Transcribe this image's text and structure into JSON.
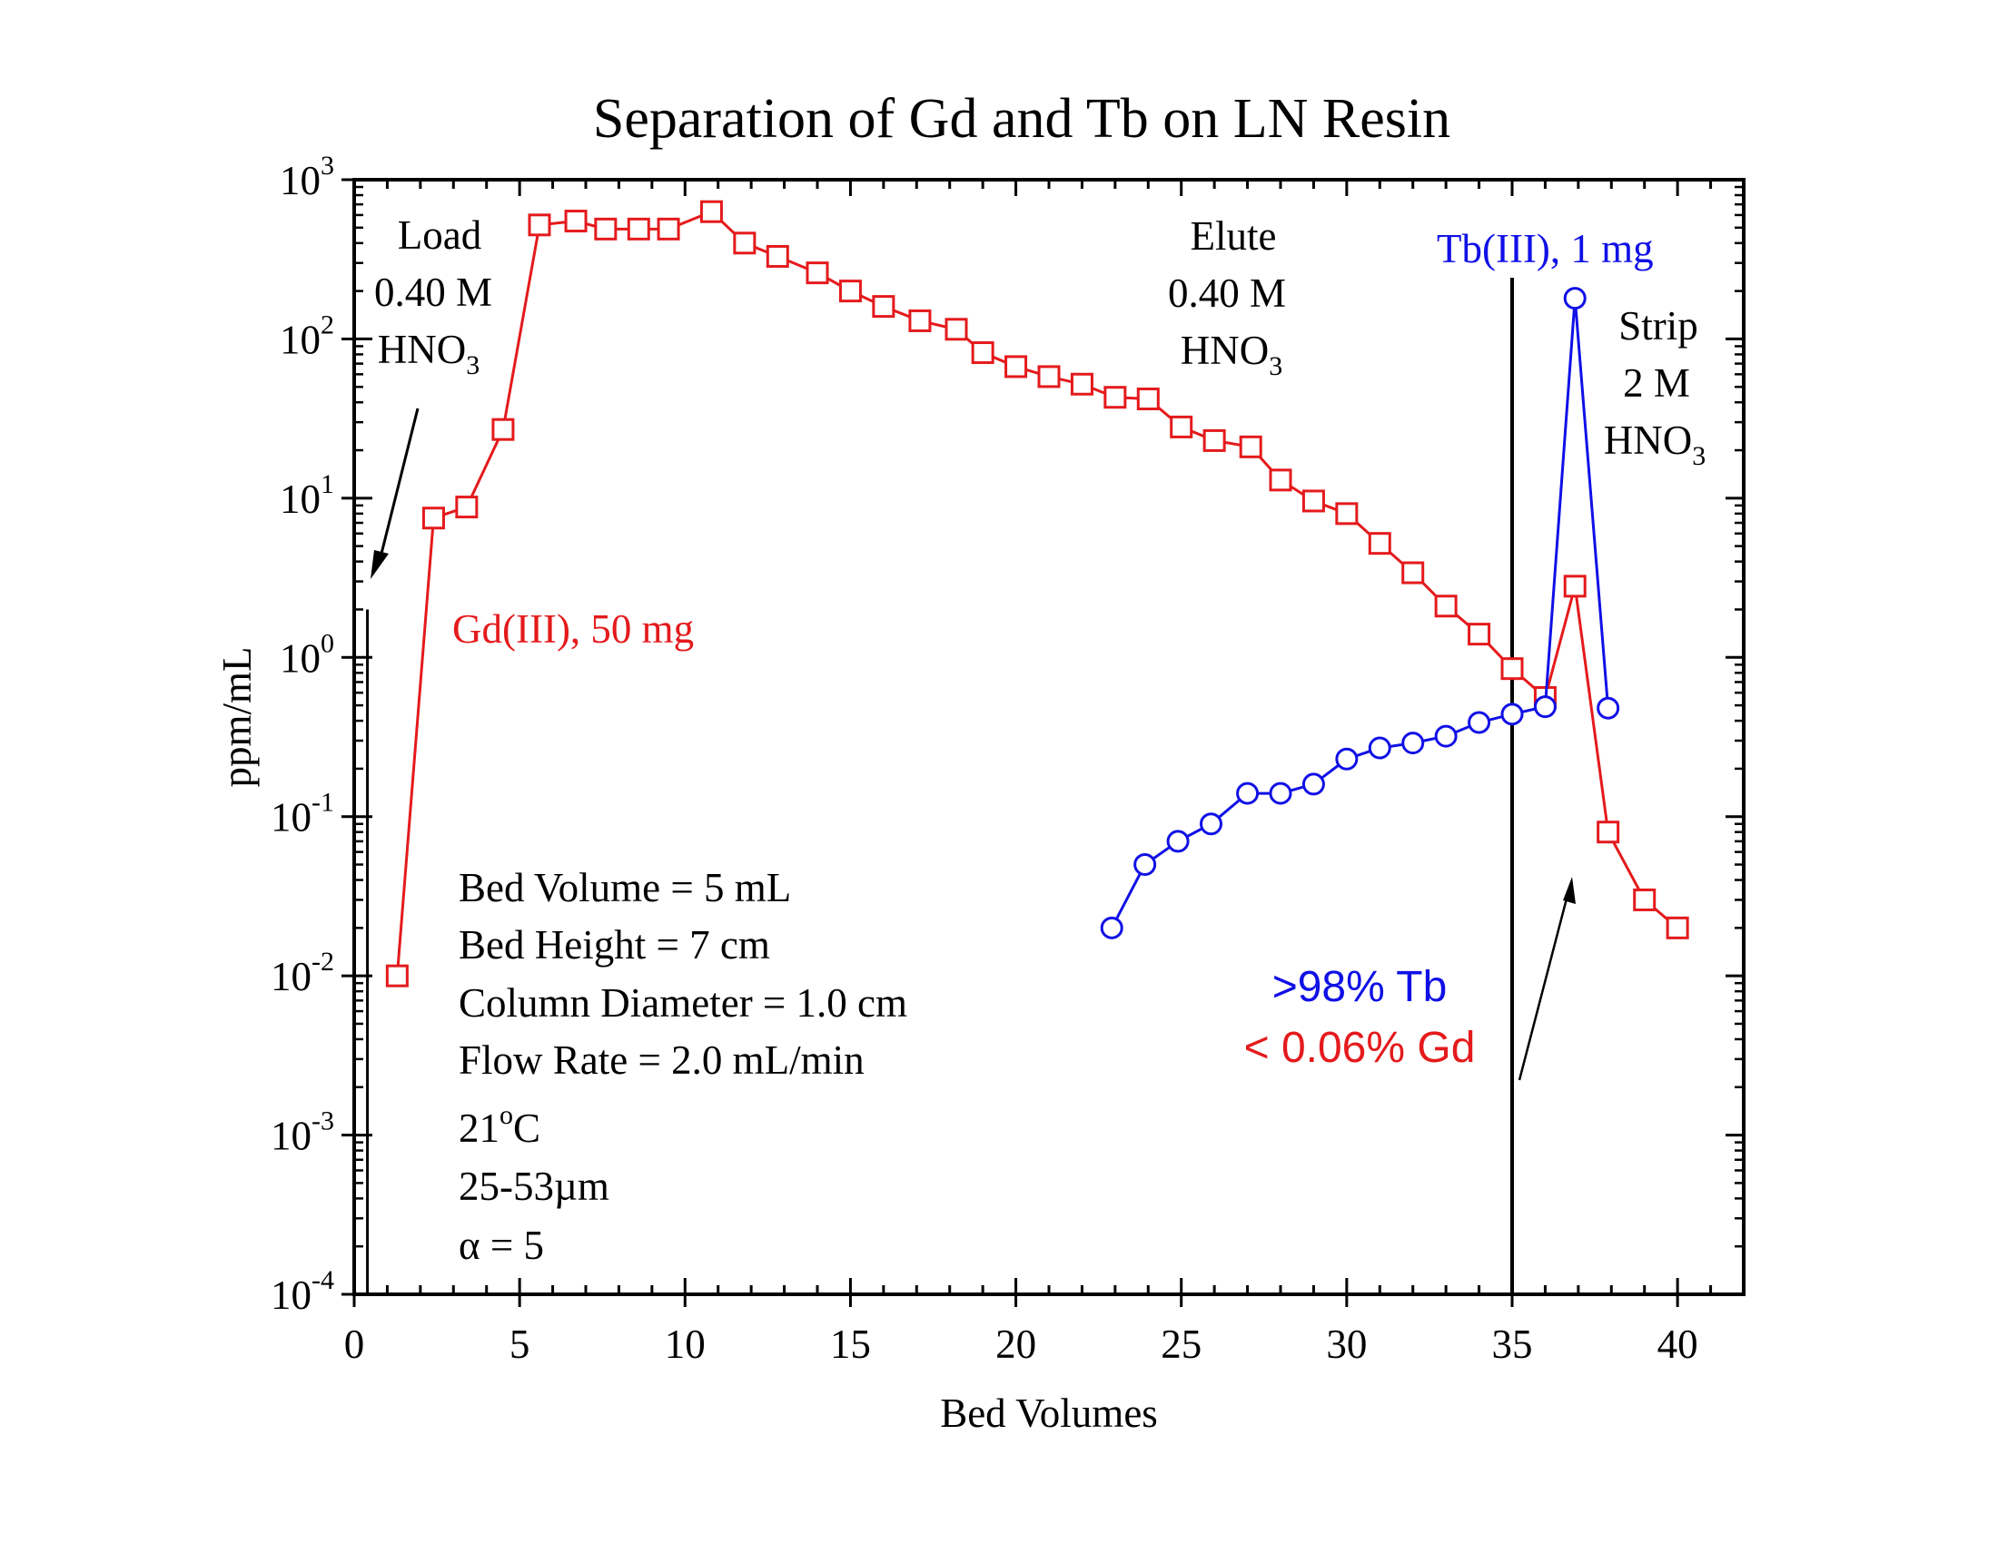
{
  "chart_data": {
    "type": "line",
    "title": "Separation of Gd and Tb on LN Resin",
    "xlabel": "Bed Volumes",
    "ylabel": "ppm/mL",
    "xlim": [
      0,
      42
    ],
    "ylim_log10": [
      -4,
      3
    ],
    "yscale": "log",
    "grid": false,
    "x_ticks": [
      "0",
      "5",
      "10",
      "15",
      "20",
      "25",
      "30",
      "35",
      "40"
    ],
    "y_ticks": [
      {
        "base": "10",
        "exp": "3"
      },
      {
        "base": "10",
        "exp": "2"
      },
      {
        "base": "10",
        "exp": "1"
      },
      {
        "base": "10",
        "exp": "0"
      },
      {
        "base": "10",
        "exp": "-1"
      },
      {
        "base": "10",
        "exp": "-2"
      },
      {
        "base": "10",
        "exp": "-3"
      },
      {
        "base": "10",
        "exp": "-4"
      }
    ],
    "series": [
      {
        "name": "Gd(III), 50 mg",
        "color": "#e41a1c",
        "marker": "square",
        "x": [
          1.3,
          2.4,
          3.4,
          4.5,
          5.6,
          6.7,
          7.6,
          8.6,
          9.5,
          10.8,
          11.8,
          12.8,
          14.0,
          15.0,
          16.0,
          17.1,
          18.2,
          19.0,
          20.0,
          21.0,
          22.0,
          23.0,
          24.0,
          25.0,
          26.0,
          27.1,
          28.0,
          29.0,
          30.0,
          31.0,
          32.0,
          33.0,
          34.0,
          35.0,
          36.0,
          36.9,
          37.9,
          39.0,
          40.0
        ],
        "y": [
          0.01,
          7.5,
          8.8,
          27,
          520,
          550,
          490,
          490,
          490,
          630,
          400,
          330,
          260,
          200,
          160,
          130,
          115,
          82,
          67,
          58,
          52,
          43,
          42,
          28,
          23,
          21,
          13,
          9.6,
          8.0,
          5.2,
          3.4,
          2.1,
          1.4,
          0.85,
          0.56,
          2.8,
          0.08,
          0.03,
          0.02
        ]
      },
      {
        "name": "Tb(III), 1 mg",
        "color": "#1010e6",
        "marker": "circle",
        "x": [
          22.9,
          23.9,
          24.9,
          25.9,
          27.0,
          28.0,
          29.0,
          30.0,
          31.0,
          32.0,
          33.0,
          34.0,
          35.0,
          36.0,
          36.9,
          37.9
        ],
        "y": [
          0.02,
          0.05,
          0.07,
          0.09,
          0.14,
          0.14,
          0.16,
          0.23,
          0.27,
          0.29,
          0.32,
          0.39,
          0.44,
          0.49,
          180,
          0.48
        ]
      }
    ],
    "vertical_lines": [
      0.4,
      35.0
    ],
    "annotations": {
      "load": [
        "Load",
        "0.40 M",
        "HNO",
        "3"
      ],
      "elute": [
        "Elute",
        "0.40 M",
        "HNO",
        "3"
      ],
      "strip": [
        "Strip",
        "2 M",
        "HNO",
        "3"
      ],
      "gd_label": "Gd(III), 50 mg",
      "tb_label": "Tb(III), 1 mg",
      "tb_percent": ">98% Tb",
      "gd_percent": "< 0.06% Gd",
      "conditions": {
        "bed_volume": "Bed Volume = 5 mL",
        "bed_height": "Bed Height = 7 cm",
        "column_diameter": "Column Diameter = 1.0 cm",
        "flow_rate": "Flow Rate = 2.0 mL/min",
        "temp_num": "21",
        "temp_deg": "o",
        "temp_unit": "C",
        "particle_size": "25-53µm",
        "alpha": "α = 5"
      }
    }
  }
}
